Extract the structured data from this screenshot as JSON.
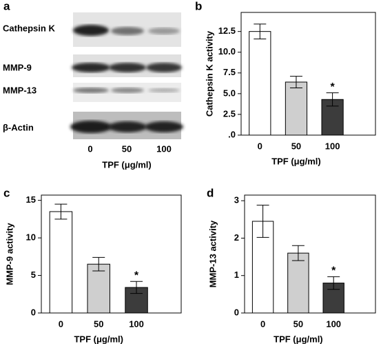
{
  "panel_a": {
    "label": "a",
    "proteins": [
      "Cathepsin K",
      "MMP-9",
      "MMP-13",
      "β-Actin"
    ],
    "lanes": [
      "0",
      "50",
      "100"
    ],
    "x_label": "TPF (μg/ml)"
  },
  "chart_data": [
    {
      "type": "bar",
      "label": "b",
      "categories": [
        "0",
        "50",
        "100"
      ],
      "values": [
        12.5,
        6.4,
        4.3
      ],
      "errors": [
        0.9,
        0.7,
        0.8
      ],
      "colors": [
        "#ffffff",
        "#cfcfcf",
        "#3c3c3c"
      ],
      "significance": [
        null,
        null,
        "*"
      ],
      "ylim": [
        0,
        14.8
      ],
      "yticks": [
        {
          "value": 0,
          "label": ".0"
        },
        2.5,
        {
          "value": 5,
          "label": "5.0"
        },
        7.5,
        {
          "value": 10,
          "label": "10.0"
        },
        12.5
      ],
      "y_label": "Cathepsin K activity",
      "x_label": "TPF (μg/ml)"
    },
    {
      "type": "bar",
      "label": "c",
      "categories": [
        "0",
        "50",
        "100"
      ],
      "values": [
        13.5,
        6.5,
        3.4
      ],
      "errors": [
        1.0,
        0.9,
        0.8
      ],
      "colors": [
        "#ffffff",
        "#cfcfcf",
        "#3c3c3c"
      ],
      "significance": [
        null,
        null,
        "*"
      ],
      "ylim": [
        0,
        15.7
      ],
      "yticks": [
        0,
        5,
        10,
        15
      ],
      "y_label": "MMP-9 activity",
      "x_label": "TPF (μg/ml)"
    },
    {
      "type": "bar",
      "label": "d",
      "categories": [
        "0",
        "50",
        "100"
      ],
      "values": [
        2.45,
        1.6,
        0.8
      ],
      "errors": [
        0.43,
        0.2,
        0.17
      ],
      "colors": [
        "#ffffff",
        "#cfcfcf",
        "#3c3c3c"
      ],
      "significance": [
        null,
        null,
        "*"
      ],
      "ylim": [
        0,
        3.15
      ],
      "yticks": [
        0,
        1,
        2,
        3
      ],
      "y_label": "MMP-13 activity",
      "x_label": "TPF (μg/ml)"
    }
  ]
}
